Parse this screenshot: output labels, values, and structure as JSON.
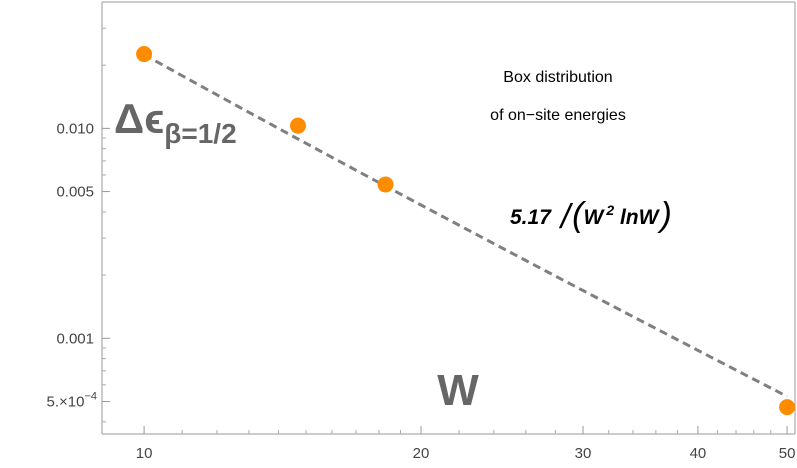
{
  "chart_data": {
    "type": "scatter",
    "xscale": "log",
    "yscale": "log",
    "xlim": [
      9.0,
      51.0
    ],
    "ylim": [
      0.00035,
      0.04
    ],
    "xticks": [
      {
        "value": 10,
        "label": "10"
      },
      {
        "value": 20,
        "label": "20"
      },
      {
        "value": 30,
        "label": "30"
      },
      {
        "value": 40,
        "label": "40"
      },
      {
        "value": 50,
        "label": "50"
      }
    ],
    "yticks": [
      {
        "value": 0.0005,
        "base": "5.×10",
        "exp": "−4"
      },
      {
        "value": 0.001,
        "base": "0.001",
        "exp": ""
      },
      {
        "value": 0.005,
        "base": "0.005",
        "exp": ""
      },
      {
        "value": 0.01,
        "base": "0.010",
        "exp": ""
      }
    ],
    "points": [
      {
        "x": 10,
        "y": 0.0226
      },
      {
        "x": 14.7,
        "y": 0.0103
      },
      {
        "x": 18.3,
        "y": 0.0054
      },
      {
        "x": 50,
        "y": 0.00047
      }
    ],
    "fit": {
      "coef": 5.17
    },
    "point_color": "#ff8c00",
    "line_color": "#808080",
    "xlabel": "W",
    "ylabel": {
      "base": "Δϵ",
      "sub": "β=1/2"
    },
    "annotation": [
      "Box distribution",
      "of on−site energies"
    ],
    "fit_label": {
      "coef": "5.17",
      "slash": "/",
      "lparen": "(",
      "w": "W",
      "exp": "2",
      "lnw": " lnW",
      "rparen": ")"
    }
  }
}
